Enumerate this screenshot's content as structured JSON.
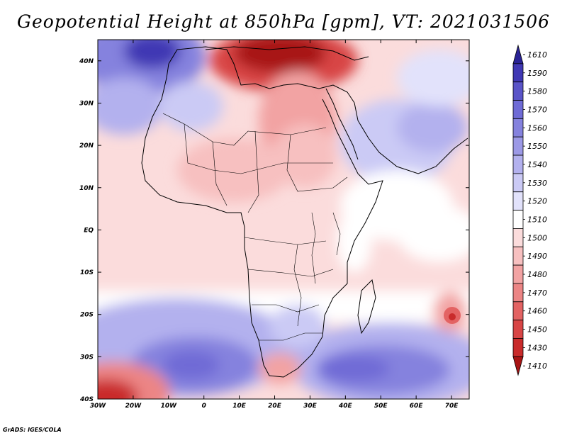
{
  "title": "Geopotential Height at 850hPa [gpm], VT: 2021031506",
  "credit": "GrADS: IGES/COLA",
  "map": {
    "lon_range": [
      -30,
      75
    ],
    "lat_range": [
      -40,
      45
    ],
    "lon_ticks": [
      "30W",
      "20W",
      "10W",
      "0",
      "10E",
      "20E",
      "30E",
      "40E",
      "50E",
      "60E",
      "70E"
    ],
    "lat_ticks": [
      "40S",
      "30S",
      "20S",
      "10S",
      "EQ",
      "10N",
      "20N",
      "30N",
      "40N"
    ]
  },
  "colorbar": {
    "levels": [
      "1610",
      "1590",
      "1580",
      "1570",
      "1560",
      "1550",
      "1540",
      "1530",
      "1520",
      "1510",
      "1500",
      "1490",
      "1480",
      "1470",
      "1460",
      "1450",
      "1430",
      "1410"
    ],
    "colors": [
      "#2a2396",
      "#4038b4",
      "#5a54c8",
      "#6f6bd6",
      "#8582de",
      "#9c99e6",
      "#b3b1ee",
      "#cbcaf5",
      "#e2e2fb",
      "#ffffff",
      "#fbdcdc",
      "#f7c0c0",
      "#f2a3a3",
      "#ec8585",
      "#e36363",
      "#d84545",
      "#c92b2b",
      "#a81414"
    ]
  }
}
